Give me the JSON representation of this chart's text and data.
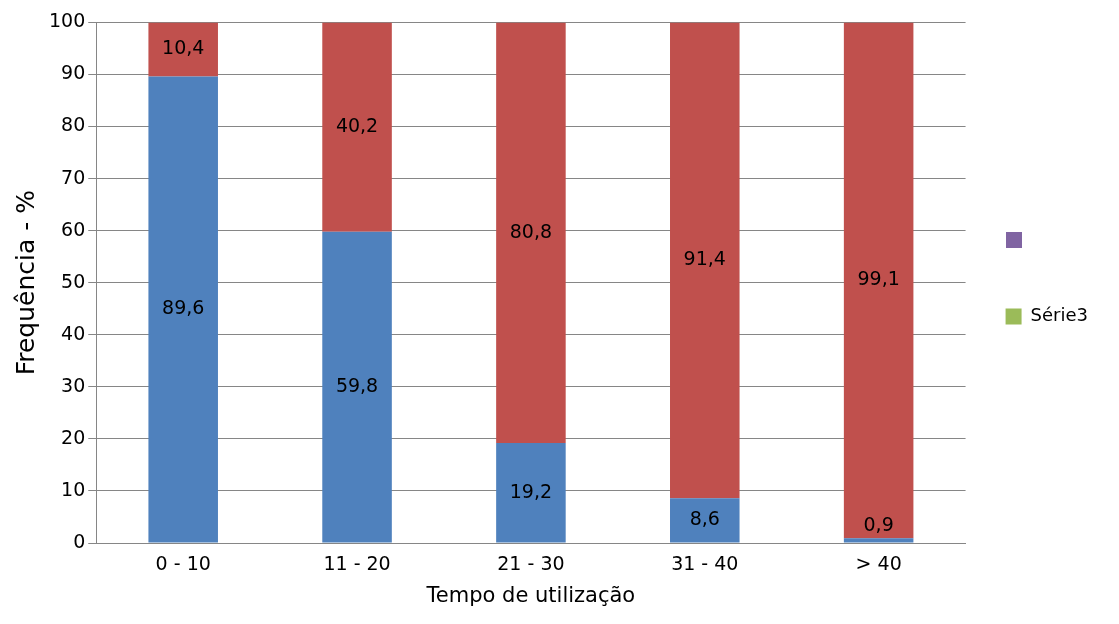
{
  "chart_data": {
    "type": "bar",
    "stacked": true,
    "xlabel": "Tempo de utilização",
    "ylabel": "Frequência - %",
    "categories": [
      "0 - 10",
      "11 - 20",
      "21 - 30",
      "31 - 40",
      "> 40"
    ],
    "series": [
      {
        "color": "#4f81bd",
        "values": [
          89.6,
          59.8,
          19.2,
          8.6,
          0.9
        ],
        "value_labels": [
          "89,6",
          "59,8",
          "19,2",
          "8,6",
          "0,9"
        ]
      },
      {
        "color": "#c0504d",
        "values": [
          10.4,
          40.2,
          80.8,
          91.4,
          99.1
        ],
        "value_labels": [
          "10,4",
          "40,2",
          "80,8",
          "91,4",
          "99,1"
        ]
      },
      {
        "name": "Série3",
        "color": "#9bbb59",
        "values": [
          null,
          null,
          null,
          null,
          null
        ]
      }
    ],
    "ylim": [
      0,
      100
    ],
    "yticks": [
      0,
      10,
      20,
      30,
      40,
      50,
      60,
      70,
      80,
      90,
      100
    ],
    "grid": "y",
    "legend": "right"
  }
}
